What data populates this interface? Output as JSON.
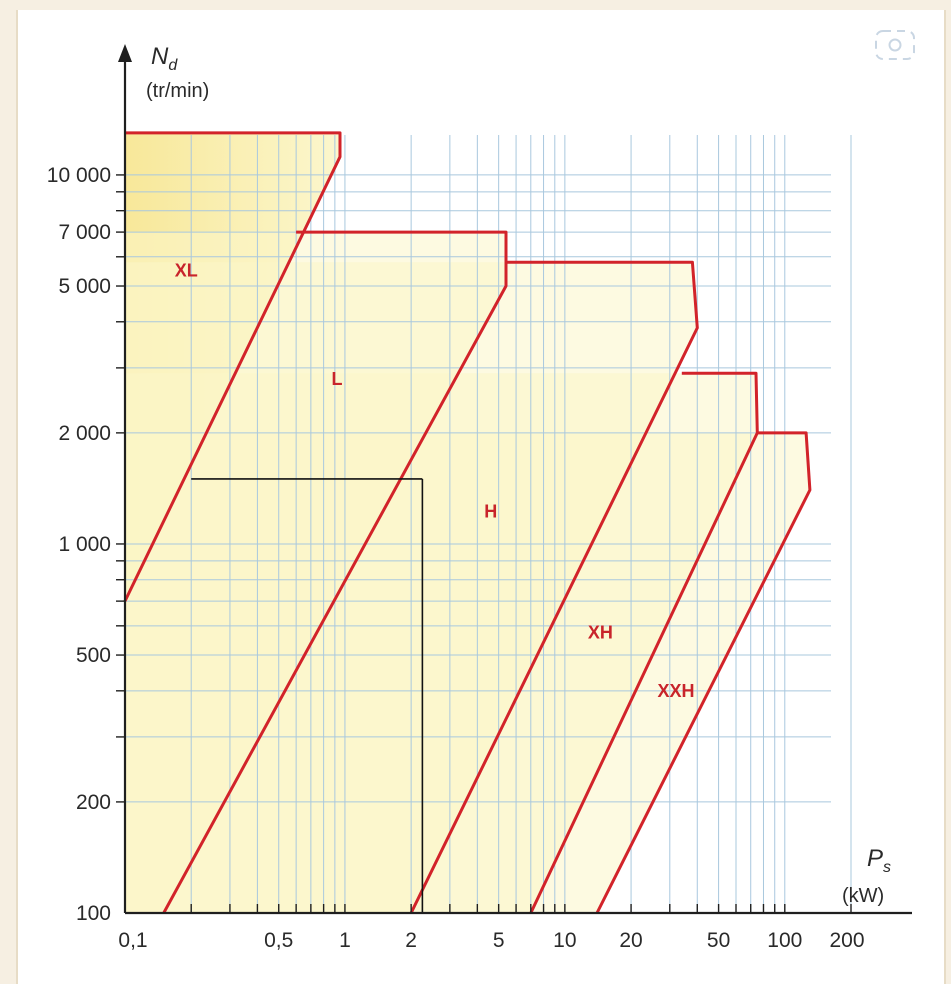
{
  "chart_data": {
    "type": "area",
    "x_axis": {
      "symbol": "P",
      "subscript": "s",
      "unit": "(kW)",
      "scale": "log",
      "range": [
        0.1,
        200
      ],
      "ticks": [
        {
          "value": 0.1,
          "label": "0,1"
        },
        {
          "value": 0.5,
          "label": "0,5"
        },
        {
          "value": 1,
          "label": "1"
        },
        {
          "value": 2,
          "label": "2"
        },
        {
          "value": 5,
          "label": "5"
        },
        {
          "value": 10,
          "label": "10"
        },
        {
          "value": 20,
          "label": "20"
        },
        {
          "value": 50,
          "label": "50"
        },
        {
          "value": 100,
          "label": "100"
        },
        {
          "value": 200,
          "label": "200"
        }
      ]
    },
    "y_axis": {
      "symbol": "N",
      "subscript": "d",
      "unit": "(tr/min)",
      "scale": "log",
      "range": [
        100,
        14000
      ],
      "ticks": [
        {
          "value": 100,
          "label": "100"
        },
        {
          "value": 200,
          "label": "200"
        },
        {
          "value": 500,
          "label": "500"
        },
        {
          "value": 1000,
          "label": "1 000"
        },
        {
          "value": 2000,
          "label": "2 000"
        },
        {
          "value": 5000,
          "label": "5 000"
        },
        {
          "value": 7000,
          "label": "7 000"
        },
        {
          "value": 10000,
          "label": "10 000"
        }
      ]
    },
    "grid": true,
    "series": [
      {
        "name": "XL",
        "label_at": [
          0.19,
          5300
        ],
        "boundary": [
          [
            0.1,
            13000
          ],
          [
            0.95,
            13000
          ],
          [
            0.95,
            11200
          ],
          [
            0.1,
            700
          ]
        ]
      },
      {
        "name": "L",
        "label_at": [
          0.92,
          2700
        ],
        "boundary": [
          [
            0.6,
            7000
          ],
          [
            5.4,
            7000
          ],
          [
            5.4,
            5000
          ],
          [
            0.15,
            100
          ]
        ]
      },
      {
        "name": "H",
        "label_at": [
          4.6,
          1180
        ],
        "boundary": [
          [
            5.4,
            5800
          ],
          [
            38,
            5800
          ],
          [
            40,
            3850
          ],
          [
            2.0,
            100
          ]
        ]
      },
      {
        "name": "XH",
        "label_at": [
          14.5,
          555
        ],
        "boundary": [
          [
            34,
            2900
          ],
          [
            74,
            2900
          ],
          [
            75,
            2000
          ],
          [
            7.0,
            100
          ]
        ]
      },
      {
        "name": "XXH",
        "label_at": [
          32,
          385
        ],
        "boundary": [
          [
            75,
            2000
          ],
          [
            125,
            2000
          ],
          [
            130,
            1400
          ],
          [
            14,
            100
          ]
        ]
      }
    ],
    "reading_lines": [
      [
        [
          0.2,
          1500
        ],
        [
          2.25,
          1500
        ]
      ],
      [
        [
          2.25,
          1500
        ],
        [
          2.25,
          100
        ]
      ]
    ],
    "colors": {
      "fill": "#fbf6c8",
      "fill_edge": "#f7e58e",
      "boundary": "#d2232a",
      "grid": "#a9c8de",
      "axis": "#1f1f1f",
      "label": "#c8242b"
    }
  },
  "icons": {
    "corner": "camera-lens-icon"
  }
}
